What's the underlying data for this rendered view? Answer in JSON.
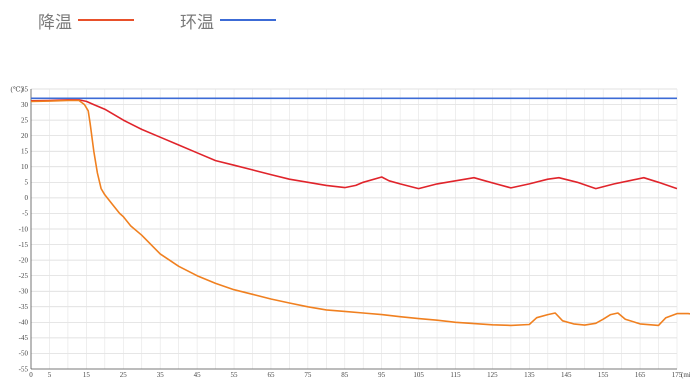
{
  "legend": [
    {
      "label": "降温",
      "color": "#e8502a"
    },
    {
      "label": "环温",
      "color": "#3c6bd6"
    }
  ],
  "chart_data": {
    "type": "line",
    "title": "",
    "y_unit": "(℃)",
    "x_unit": "(min)",
    "xlim": [
      0,
      175
    ],
    "ylim": [
      -55,
      35
    ],
    "x_ticks": [
      0,
      5,
      15,
      25,
      35,
      45,
      55,
      65,
      75,
      85,
      95,
      105,
      115,
      125,
      135,
      145,
      155,
      165,
      175
    ],
    "y_ticks": [
      35,
      30,
      25,
      20,
      15,
      10,
      5,
      0,
      -5,
      -10,
      -15,
      -20,
      -25,
      -30,
      -35,
      -40,
      -45,
      -50,
      -55
    ],
    "grid": true,
    "series": [
      {
        "name": "环温",
        "color": "#3c6bd6",
        "points": [
          [
            0,
            32
          ],
          [
            175,
            32
          ]
        ]
      },
      {
        "name": "",
        "color": "#e0242b",
        "points": [
          [
            0,
            31.2
          ],
          [
            5,
            31.3
          ],
          [
            10,
            31.5
          ],
          [
            13,
            31.5
          ],
          [
            15,
            31
          ],
          [
            17,
            30
          ],
          [
            20,
            28.5
          ],
          [
            25,
            25
          ],
          [
            30,
            22
          ],
          [
            35,
            19.5
          ],
          [
            40,
            17
          ],
          [
            45,
            14.5
          ],
          [
            50,
            12
          ],
          [
            55,
            10.5
          ],
          [
            60,
            9
          ],
          [
            65,
            7.5
          ],
          [
            70,
            6
          ],
          [
            75,
            5
          ],
          [
            80,
            4
          ],
          [
            85,
            3.3
          ],
          [
            88,
            4
          ],
          [
            90,
            5
          ],
          [
            95,
            6.7
          ],
          [
            97,
            5.5
          ],
          [
            100,
            4.5
          ],
          [
            105,
            3
          ],
          [
            110,
            4.5
          ],
          [
            115,
            5.5
          ],
          [
            120,
            6.5
          ],
          [
            123,
            5.5
          ],
          [
            126,
            4.5
          ],
          [
            130,
            3.2
          ],
          [
            135,
            4.5
          ],
          [
            140,
            6
          ],
          [
            143,
            6.5
          ],
          [
            148,
            5
          ],
          [
            153,
            3
          ],
          [
            158,
            4.5
          ],
          [
            162,
            5.5
          ],
          [
            166,
            6.5
          ],
          [
            170,
            5
          ],
          [
            175,
            3
          ]
        ]
      },
      {
        "name": "降温",
        "color": "#f08020",
        "points": [
          [
            0,
            31
          ],
          [
            5,
            31.1
          ],
          [
            10,
            31.3
          ],
          [
            13,
            31.3
          ],
          [
            14.5,
            30
          ],
          [
            15.5,
            28
          ],
          [
            16,
            24
          ],
          [
            17,
            15
          ],
          [
            18,
            8
          ],
          [
            19,
            3
          ],
          [
            20,
            1
          ],
          [
            22,
            -2
          ],
          [
            24,
            -5
          ],
          [
            25,
            -6
          ],
          [
            27,
            -9
          ],
          [
            30,
            -12
          ],
          [
            35,
            -18
          ],
          [
            40,
            -22
          ],
          [
            45,
            -25
          ],
          [
            50,
            -27.5
          ],
          [
            55,
            -29.5
          ],
          [
            60,
            -31
          ],
          [
            65,
            -32.5
          ],
          [
            70,
            -33.8
          ],
          [
            75,
            -35
          ],
          [
            80,
            -36
          ],
          [
            85,
            -36.5
          ],
          [
            90,
            -37
          ],
          [
            95,
            -37.5
          ],
          [
            100,
            -38.2
          ],
          [
            105,
            -38.8
          ],
          [
            110,
            -39.3
          ],
          [
            115,
            -40
          ],
          [
            120,
            -40.4
          ],
          [
            125,
            -40.8
          ],
          [
            130,
            -41
          ],
          [
            135,
            -40.7
          ],
          [
            137,
            -38.5
          ],
          [
            140,
            -37.5
          ],
          [
            142,
            -37
          ],
          [
            144,
            -39.5
          ],
          [
            147,
            -40.5
          ],
          [
            150,
            -40.9
          ],
          [
            153,
            -40.3
          ],
          [
            155,
            -39
          ],
          [
            157,
            -37.5
          ],
          [
            159,
            -37
          ],
          [
            161,
            -39
          ],
          [
            165,
            -40.5
          ],
          [
            170,
            -41
          ],
          [
            172,
            -38.5
          ],
          [
            175,
            -37.2
          ],
          [
            178,
            -37.2
          ],
          [
            180,
            -37.5
          ]
        ]
      }
    ]
  }
}
